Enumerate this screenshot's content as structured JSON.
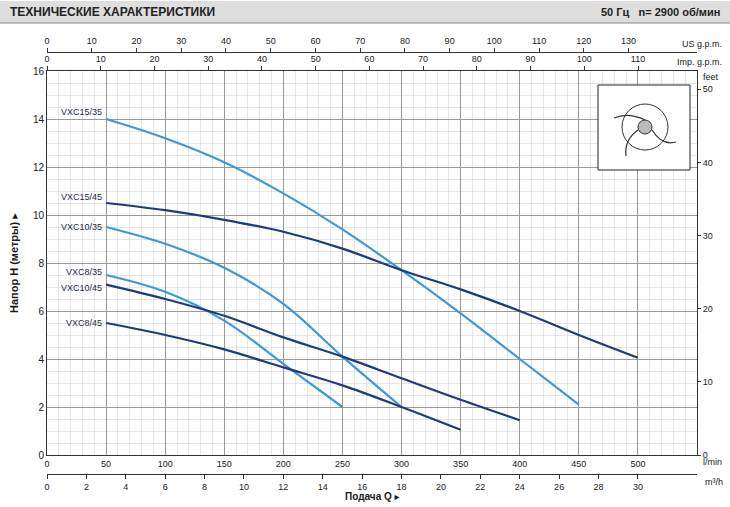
{
  "chart_data": {
    "type": "line",
    "title": "ТЕХНИЧЕСКИЕ ХАРАКТЕРИСТИКИ",
    "subtitle": "50 Гц   n= 2900 об/мин",
    "xlabel": "Подача Q ▸",
    "xunit": "l/min",
    "ylabel": "Напор H (метры) ▸",
    "x2label": "m³/h",
    "x3label": "US g.p.m.",
    "x4label": "Imp. g.p.m.",
    "y2label": "feet",
    "xlim": [
      0,
      550
    ],
    "xticks": [
      0,
      50,
      100,
      150,
      200,
      250,
      300,
      350,
      400,
      450,
      500
    ],
    "x2lim": [
      0,
      33
    ],
    "x2ticks": [
      0,
      2,
      4,
      6,
      8,
      10,
      12,
      14,
      16,
      18,
      20,
      22,
      24,
      26,
      28,
      30
    ],
    "x3lim": [
      0,
      145.3
    ],
    "x3ticks": [
      0,
      10,
      20,
      30,
      40,
      50,
      60,
      70,
      80,
      90,
      100,
      110,
      120,
      130
    ],
    "x4lim": [
      0,
      120.98
    ],
    "x4ticks": [
      0,
      10,
      20,
      30,
      40,
      50,
      60,
      70,
      80,
      90,
      100,
      110
    ],
    "ylim": [
      0,
      16
    ],
    "yticks": [
      0,
      2,
      4,
      6,
      8,
      10,
      12,
      14,
      16
    ],
    "y2lim": [
      0,
      52.49
    ],
    "y2ticks": [
      0,
      10,
      20,
      30,
      40,
      50
    ],
    "grid": true,
    "series": [
      {
        "name": "VXC15/35",
        "color": "#3a9ad9",
        "x": [
          50,
          100,
          150,
          200,
          250,
          300,
          350,
          400,
          450
        ],
        "values": [
          14.0,
          13.2,
          12.2,
          10.9,
          9.4,
          7.7,
          5.9,
          4.0,
          2.1
        ]
      },
      {
        "name": "VXC15/45",
        "color": "#1c3c7c",
        "x": [
          50,
          100,
          150,
          200,
          250,
          300,
          350,
          400,
          450,
          500
        ],
        "values": [
          10.5,
          10.2,
          9.8,
          9.3,
          8.6,
          7.7,
          6.9,
          6.0,
          5.0,
          4.05
        ]
      },
      {
        "name": "VXC10/35",
        "color": "#3a9ad9",
        "x": [
          50,
          100,
          150,
          200,
          250,
          300
        ],
        "values": [
          9.5,
          8.8,
          7.8,
          6.3,
          4.1,
          2.0
        ]
      },
      {
        "name": "VXC8/35",
        "color": "#3a9ad9",
        "x": [
          50,
          100,
          150,
          200,
          250
        ],
        "values": [
          7.5,
          6.8,
          5.6,
          3.8,
          2.0
        ]
      },
      {
        "name": "VXC10/45",
        "color": "#1c3c7c",
        "x": [
          50,
          100,
          150,
          200,
          250,
          300,
          350,
          400
        ],
        "values": [
          7.1,
          6.5,
          5.8,
          4.9,
          4.1,
          3.2,
          2.3,
          1.45
        ]
      },
      {
        "name": "VXC8/45",
        "color": "#1c3c7c",
        "x": [
          50,
          100,
          150,
          200,
          250,
          300,
          350
        ],
        "values": [
          5.5,
          5.0,
          4.4,
          3.65,
          2.9,
          2.0,
          1.05
        ]
      }
    ]
  }
}
